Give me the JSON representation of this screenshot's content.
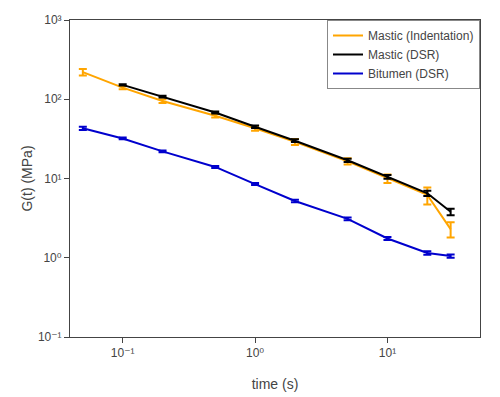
{
  "chart_data": {
    "type": "line",
    "xlabel": "time (s)",
    "ylabel": "G(t) (MPa)",
    "log": true,
    "grid": false,
    "legend": "upper right",
    "line_style": "solid",
    "xlim": [
      0.04,
      50
    ],
    "ylim": [
      0.1,
      1000
    ],
    "xticks": [
      {
        "value": 0.1,
        "label": "10⁻¹"
      },
      {
        "value": 1,
        "label": "10⁰"
      },
      {
        "value": 10,
        "label": "10¹"
      }
    ],
    "yticks": [
      {
        "value": 0.1,
        "label": "10⁻¹"
      },
      {
        "value": 1,
        "label": "10⁰"
      },
      {
        "value": 10,
        "label": "10¹"
      },
      {
        "value": 100,
        "label": "10²"
      },
      {
        "value": 1000,
        "label": "10³"
      }
    ],
    "series": [
      {
        "name": "Mastic (Indentation)",
        "color": "#FFA500",
        "x": [
          0.05,
          0.1,
          0.2,
          0.5,
          1.0,
          2.0,
          5.0,
          10.0,
          20.0,
          30.0
        ],
        "values": [
          220,
          140,
          95,
          62,
          43,
          29,
          16.5,
          10.0,
          6.2,
          2.3
        ],
        "yerr_lo": [
          20,
          6,
          5,
          3,
          3,
          2.5,
          1.5,
          1.2,
          1.5,
          0.5
        ],
        "yerr_hi": [
          20,
          6,
          5,
          3,
          3,
          2.5,
          1.5,
          1.2,
          1.5,
          0.5
        ]
      },
      {
        "name": "Mastic (DSR)",
        "color": "#000000",
        "x": [
          0.1,
          0.2,
          0.5,
          1.0,
          2.0,
          5.0,
          10.0,
          20.0,
          30.0
        ],
        "values": [
          152,
          108,
          68,
          45,
          30,
          17,
          10.5,
          6.5,
          3.8
        ],
        "yerr_lo": [
          2.5,
          2.5,
          2.0,
          1.5,
          1.2,
          0.8,
          0.6,
          0.5,
          0.35
        ],
        "yerr_hi": [
          2.5,
          2.5,
          2.0,
          1.5,
          1.2,
          0.8,
          0.6,
          0.5,
          0.35
        ]
      },
      {
        "name": "Bitumen (DSR)",
        "color": "#0000CD",
        "x": [
          0.05,
          0.1,
          0.2,
          0.5,
          1.0,
          2.0,
          5.0,
          10.0,
          20.0,
          30.0
        ],
        "values": [
          43,
          32,
          22,
          14,
          8.5,
          5.2,
          3.1,
          1.75,
          1.15,
          1.05
        ],
        "yerr_lo": [
          2,
          0.8,
          0.6,
          0.4,
          0.25,
          0.18,
          0.12,
          0.08,
          0.06,
          0.05
        ],
        "yerr_hi": [
          2,
          0.8,
          0.6,
          0.4,
          0.25,
          0.18,
          0.12,
          0.08,
          0.06,
          0.05
        ]
      }
    ]
  }
}
